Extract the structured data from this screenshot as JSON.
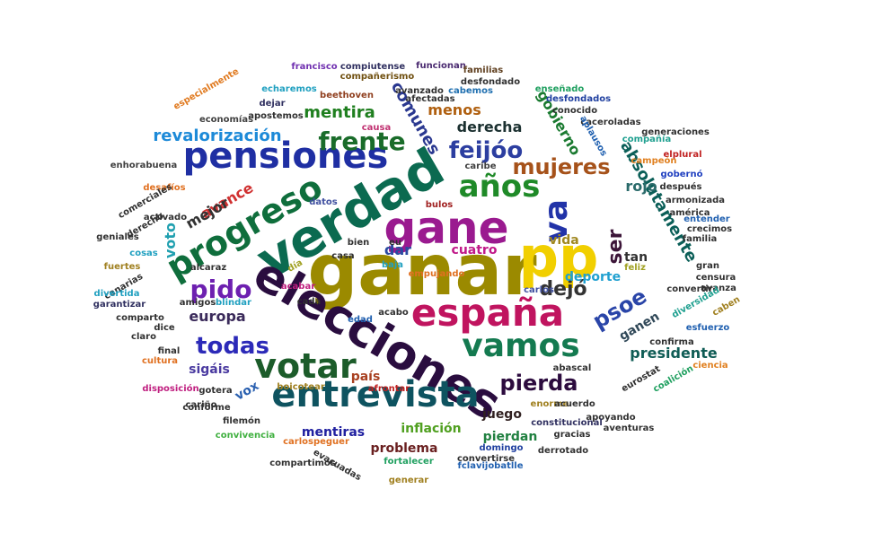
{
  "words": [
    {
      "text": "ganar",
      "color": "#9b8a00"
    },
    {
      "text": "verdad",
      "color": "#0b6a50"
    },
    {
      "text": "elecciones",
      "color": "#2a0d3f"
    },
    {
      "text": "pp",
      "color": "#f1cf00"
    },
    {
      "text": "gane",
      "color": "#9a1a8f"
    },
    {
      "text": "españa",
      "color": "#c0145f"
    },
    {
      "text": "entrevista",
      "color": "#0e5360"
    },
    {
      "text": "votar",
      "color": "#1c5c2a"
    },
    {
      "text": "vamos",
      "color": "#147a50"
    },
    {
      "text": "pensiones",
      "color": "#1f2fa3"
    },
    {
      "text": "progreso",
      "color": "#0f6e3c"
    },
    {
      "text": "va",
      "color": "#2233a8"
    },
    {
      "text": "años",
      "color": "#1f8a28"
    },
    {
      "text": "feijóo",
      "color": "#2c3ea0"
    },
    {
      "text": "frente",
      "color": "#1a6c2a"
    },
    {
      "text": "mujeres",
      "color": "#a6521a"
    },
    {
      "text": "pido",
      "color": "#6d20b0"
    },
    {
      "text": "todas",
      "color": "#2c2ab8"
    },
    {
      "text": "pierda",
      "color": "#2c0b3e"
    },
    {
      "text": "psoe",
      "color": "#2a45a8"
    },
    {
      "text": "dejó",
      "color": "#333333"
    },
    {
      "text": "ser",
      "color": "#3c1538"
    },
    {
      "text": "absolutamente",
      "color": "#0b5f58"
    },
    {
      "text": "mentira",
      "color": "#1f7f1f"
    },
    {
      "text": "comunes",
      "color": "#2a3890"
    },
    {
      "text": "derecha",
      "color": "#1b3030"
    },
    {
      "text": "revalorización",
      "color": "#1d8ad8"
    },
    {
      "text": "menos",
      "color": "#b06010"
    },
    {
      "text": "gobierno",
      "color": "#1a7a30"
    },
    {
      "text": "rojo",
      "color": "#2a6a6a"
    },
    {
      "text": "avance",
      "color": "#d03030"
    },
    {
      "text": "mejor",
      "color": "#333333"
    },
    {
      "text": "voto",
      "color": "#20a0b0"
    },
    {
      "text": "europa",
      "color": "#3a2a5a"
    },
    {
      "text": "dar",
      "color": "#2a4aa0"
    },
    {
      "text": "cuatro",
      "color": "#c01888"
    },
    {
      "text": "vida",
      "color": "#a08820"
    },
    {
      "text": "tan",
      "color": "#303030"
    },
    {
      "text": "deporte",
      "color": "#20a0d0"
    },
    {
      "text": "ganen",
      "color": "#304858"
    },
    {
      "text": "presidente",
      "color": "#0f5c55"
    },
    {
      "text": "sigáis",
      "color": "#4a3aa0"
    },
    {
      "text": "vox",
      "color": "#2a60b0"
    },
    {
      "text": "país",
      "color": "#a84020"
    },
    {
      "text": "mentiras",
      "color": "#2020a0"
    },
    {
      "text": "inflación",
      "color": "#50a020"
    },
    {
      "text": "juego",
      "color": "#302020"
    },
    {
      "text": "problema",
      "color": "#6a2020"
    },
    {
      "text": "pierdan",
      "color": "#208040"
    },
    {
      "text": "especialmente",
      "color": "#e07a20"
    },
    {
      "text": "francisco",
      "color": "#7030b0"
    },
    {
      "text": "compiutense",
      "color": "#303060"
    },
    {
      "text": "funcionan",
      "color": "#4a2a70"
    },
    {
      "text": "familias",
      "color": "#604020"
    },
    {
      "text": "compañerismo",
      "color": "#705010"
    },
    {
      "text": "desfondado",
      "color": "#303030"
    },
    {
      "text": "echaremos",
      "color": "#20a0c0"
    },
    {
      "text": "cabemos",
      "color": "#2070b0"
    },
    {
      "text": "beethoven",
      "color": "#904020"
    },
    {
      "text": "avanzado",
      "color": "#303030"
    },
    {
      "text": "enseñado",
      "color": "#20a060"
    },
    {
      "text": "desfondados",
      "color": "#2040a0"
    },
    {
      "text": "dejar",
      "color": "#303060"
    },
    {
      "text": "apostemos",
      "color": "#303030"
    },
    {
      "text": "afectadas",
      "color": "#303030"
    },
    {
      "text": "economías",
      "color": "#404040"
    },
    {
      "text": "causa",
      "color": "#c03070"
    },
    {
      "text": "conocido",
      "color": "#303030"
    },
    {
      "text": "caceroladas",
      "color": "#303030"
    },
    {
      "text": "aplausos",
      "color": "#2060b0"
    },
    {
      "text": "generaciones",
      "color": "#303030"
    },
    {
      "text": "compañía",
      "color": "#20a090"
    },
    {
      "text": "elplural",
      "color": "#c02020"
    },
    {
      "text": "campeón",
      "color": "#e08020"
    },
    {
      "text": "enhorabuena",
      "color": "#404040"
    },
    {
      "text": "desafíos",
      "color": "#e07020"
    },
    {
      "text": "comerciales",
      "color": "#303030"
    },
    {
      "text": "activado",
      "color": "#303030"
    },
    {
      "text": "derecho",
      "color": "#303030"
    },
    {
      "text": "caribe",
      "color": "#404040"
    },
    {
      "text": "datos",
      "color": "#4050a0"
    },
    {
      "text": "bulos",
      "color": "#a02020"
    },
    {
      "text": "gobernó",
      "color": "#2040c0"
    },
    {
      "text": "después",
      "color": "#303030"
    },
    {
      "text": "armonizada",
      "color": "#303030"
    },
    {
      "text": "américa",
      "color": "#303030"
    },
    {
      "text": "entender",
      "color": "#2060b0"
    },
    {
      "text": "crecimos",
      "color": "#303030"
    },
    {
      "text": "familia",
      "color": "#303030"
    },
    {
      "text": "geniales",
      "color": "#303030"
    },
    {
      "text": "cosas",
      "color": "#20a0c0"
    },
    {
      "text": "fuertes",
      "color": "#a08020"
    },
    {
      "text": "canarias",
      "color": "#303030"
    },
    {
      "text": "alcaraz",
      "color": "#303030"
    },
    {
      "text": "eu",
      "color": "#303030"
    },
    {
      "text": "baja",
      "color": "#20a0c0"
    },
    {
      "text": "bien",
      "color": "#303030"
    },
    {
      "text": "casa",
      "color": "#303030"
    },
    {
      "text": "día",
      "color": "#a0a020"
    },
    {
      "text": "acabar",
      "color": "#c02080"
    },
    {
      "text": "cada",
      "color": "#303030"
    },
    {
      "text": "edad",
      "color": "#2060b0"
    },
    {
      "text": "acabo",
      "color": "#303030"
    },
    {
      "text": "blindar",
      "color": "#20a0c0"
    },
    {
      "text": "amigos",
      "color": "#303030"
    },
    {
      "text": "divertida",
      "color": "#20a0c0"
    },
    {
      "text": "garantizar",
      "color": "#303060"
    },
    {
      "text": "comparto",
      "color": "#303030"
    },
    {
      "text": "dice",
      "color": "#303030"
    },
    {
      "text": "claro",
      "color": "#303030"
    },
    {
      "text": "final",
      "color": "#303030"
    },
    {
      "text": "cultura",
      "color": "#e07020"
    },
    {
      "text": "feliz",
      "color": "#a0a020"
    },
    {
      "text": "carlos",
      "color": "#4050a0"
    },
    {
      "text": "gran",
      "color": "#303030"
    },
    {
      "text": "censura",
      "color": "#303030"
    },
    {
      "text": "convertir",
      "color": "#303030"
    },
    {
      "text": "avanza",
      "color": "#303030"
    },
    {
      "text": "diversidad",
      "color": "#20a090"
    },
    {
      "text": "caben",
      "color": "#a08020"
    },
    {
      "text": "esfuerzo",
      "color": "#2060b0"
    },
    {
      "text": "confirma",
      "color": "#303030"
    },
    {
      "text": "ciencia",
      "color": "#e08020"
    },
    {
      "text": "eurostat",
      "color": "#303030"
    },
    {
      "text": "coalición",
      "color": "#20a060"
    },
    {
      "text": "disposición",
      "color": "#c02080"
    },
    {
      "text": "gotera",
      "color": "#303030"
    },
    {
      "text": "boicotear",
      "color": "#a08020"
    },
    {
      "text": "afrontar",
      "color": "#c02020"
    },
    {
      "text": "abascal",
      "color": "#303030"
    },
    {
      "text": "cariño",
      "color": "#303030"
    },
    {
      "text": "conforme",
      "color": "#303030"
    },
    {
      "text": "filemón",
      "color": "#303030"
    },
    {
      "text": "convivencia",
      "color": "#40b040"
    },
    {
      "text": "enorme",
      "color": "#a08020"
    },
    {
      "text": "acuerdo",
      "color": "#303030"
    },
    {
      "text": "apoyando",
      "color": "#303030"
    },
    {
      "text": "constitucional",
      "color": "#303060"
    },
    {
      "text": "aventuras",
      "color": "#303030"
    },
    {
      "text": "gracias",
      "color": "#303030"
    },
    {
      "text": "domingo",
      "color": "#2040a0"
    },
    {
      "text": "carlospeguer",
      "color": "#e07020"
    },
    {
      "text": "compartimos",
      "color": "#303030"
    },
    {
      "text": "fortalecer",
      "color": "#20a060"
    },
    {
      "text": "convertirse",
      "color": "#303030"
    },
    {
      "text": "derrotado",
      "color": "#303030"
    },
    {
      "text": "evacuadas",
      "color": "#303030"
    },
    {
      "text": "generar",
      "color": "#a08020"
    },
    {
      "text": "fclavijobatlle",
      "color": "#2060b0"
    },
    {
      "text": "empujando",
      "color": "#e07020"
    }
  ]
}
